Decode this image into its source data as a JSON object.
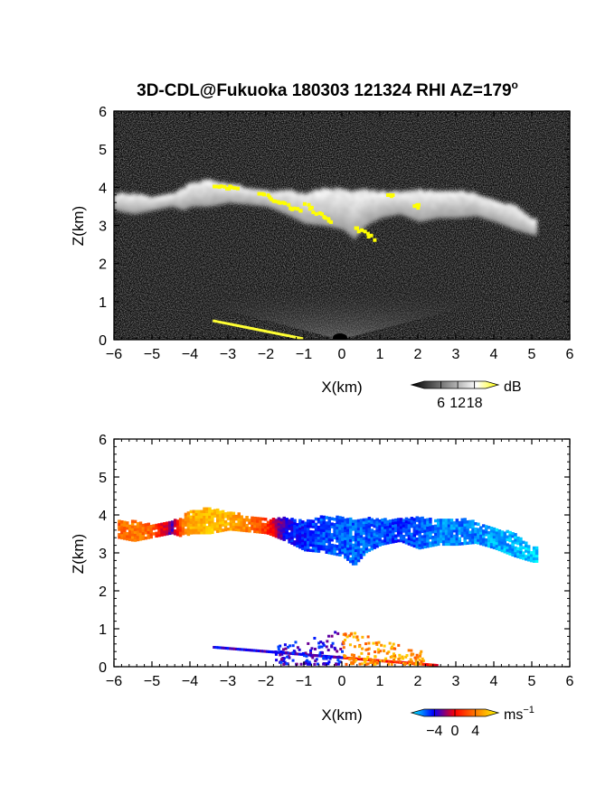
{
  "figure": {
    "title_main": "3D-CDL@Fukuoka 180303 121324 RHI AZ=179",
    "title_degree": "o"
  },
  "chart_data": [
    {
      "type": "heatmap",
      "name": "reflectivity-panel",
      "xlabel": "X(km)",
      "ylabel": "Z(km)",
      "xlim": [
        -6,
        6
      ],
      "ylim": [
        0,
        6
      ],
      "xticks": [
        "−6",
        "−5",
        "−4",
        "−3",
        "−2",
        "−1",
        "0",
        "1",
        "2",
        "3",
        "4",
        "5",
        "6"
      ],
      "yticks": [
        "0",
        "1",
        "2",
        "3",
        "4",
        "5",
        "6"
      ],
      "background": "#0a0a0a",
      "colorbar": {
        "unit": "dB",
        "ticks": [
          "6",
          "12",
          "18"
        ],
        "range": [
          0,
          22
        ],
        "colors": [
          "#000000",
          "#555555",
          "#aaaaaa",
          "#ffffff",
          "#ffff00"
        ]
      },
      "cloud_layer": {
        "x": [
          -6.0,
          -5.5,
          -5.0,
          -4.5,
          -4.2,
          -4.0,
          -3.5,
          -3.0,
          -2.5,
          -2.0,
          -1.5,
          -1.0,
          -0.5,
          0.0,
          0.3,
          0.6,
          1.0,
          1.5,
          2.0,
          2.5,
          3.0,
          3.5,
          4.0,
          4.5,
          5.0
        ],
        "top": [
          3.8,
          3.8,
          3.7,
          3.8,
          3.95,
          4.1,
          4.15,
          4.05,
          3.95,
          3.85,
          3.9,
          3.8,
          3.95,
          3.9,
          3.85,
          3.9,
          3.85,
          3.85,
          3.9,
          3.85,
          3.9,
          3.8,
          3.6,
          3.5,
          3.1
        ],
        "bottom": [
          3.4,
          3.3,
          3.4,
          3.5,
          3.4,
          3.5,
          3.5,
          3.6,
          3.55,
          3.5,
          3.3,
          3.05,
          3.0,
          2.9,
          2.65,
          3.0,
          3.2,
          3.3,
          3.1,
          3.2,
          3.2,
          3.25,
          3.1,
          2.9,
          2.75
        ]
      },
      "strong_echo_segments": [
        {
          "x": [
            -3.4,
            -2.8
          ],
          "y": [
            4.08,
            4.0
          ]
        },
        {
          "x": [
            -2.2,
            -1.1
          ],
          "y": [
            3.9,
            3.4
          ]
        },
        {
          "x": [
            -1.0,
            -0.3
          ],
          "y": [
            3.6,
            3.1
          ]
        },
        {
          "x": [
            0.3,
            0.8
          ],
          "y": [
            3.0,
            2.7
          ]
        },
        {
          "x": [
            1.2,
            1.3
          ],
          "y": [
            3.85,
            3.85
          ]
        },
        {
          "x": [
            1.9,
            2.0
          ],
          "y": [
            3.55,
            3.55
          ]
        }
      ],
      "surface_echo": {
        "x": [
          -3.4,
          -1.0
        ],
        "y": [
          0.5,
          0.02
        ]
      }
    },
    {
      "type": "heatmap",
      "name": "doppler-velocity-panel",
      "xlabel": "X(km)",
      "ylabel": "Z(km)",
      "xlim": [
        -6,
        6
      ],
      "ylim": [
        0,
        6
      ],
      "xticks": [
        "−6",
        "−5",
        "−4",
        "−3",
        "−2",
        "−1",
        "0",
        "1",
        "2",
        "3",
        "4",
        "5",
        "6"
      ],
      "yticks": [
        "0",
        "1",
        "2",
        "3",
        "4",
        "5",
        "6"
      ],
      "background": "#ffffff",
      "colorbar": {
        "unit": "ms",
        "unit_exponent": "−1",
        "ticks": [
          "−4",
          "0",
          "4"
        ],
        "range": [
          -6,
          6
        ],
        "colors": [
          "#00ffff",
          "#0000ff",
          "#ff0000",
          "#ff8000",
          "#ffff00"
        ]
      },
      "cloud_velocity": {
        "x": [
          -6.0,
          -5.5,
          -5.0,
          -4.5,
          -4.2,
          -4.0,
          -3.5,
          -3.0,
          -2.5,
          -2.0,
          -1.5,
          -1.0,
          -0.5,
          0.0,
          0.5,
          1.0,
          1.5,
          2.0,
          2.5,
          3.0,
          3.5,
          4.0,
          4.5,
          5.0
        ],
        "velocity": [
          2,
          3,
          2,
          -2,
          3,
          4,
          4.5,
          4,
          3,
          1,
          -3,
          -3.5,
          -4,
          -4,
          -4.2,
          -4,
          -3.5,
          -4,
          -4.5,
          -4.5,
          -4.5,
          -5,
          -5,
          -5.5
        ]
      },
      "surface_echo": {
        "x": [
          -3.4,
          2.5
        ],
        "y": [
          0.5,
          0.02
        ]
      }
    }
  ]
}
